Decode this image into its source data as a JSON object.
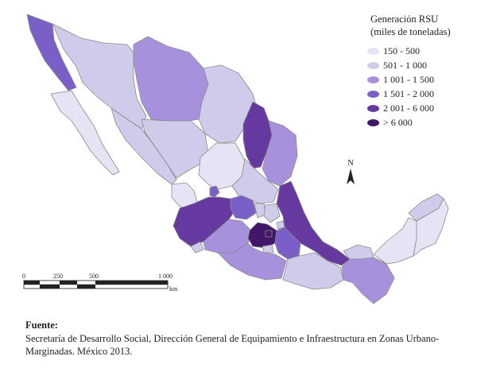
{
  "legend": {
    "title_line1": "Generación RSU",
    "title_line2": "(miles de toneladas)",
    "classes": [
      {
        "label": "150 - 500",
        "color": "#e6e3f4"
      },
      {
        "label": "501 - 1 000",
        "color": "#cfcbeb"
      },
      {
        "label": "1 001 - 1 500",
        "color": "#a791dc"
      },
      {
        "label": "1 501 - 2 000",
        "color": "#7b5fc9"
      },
      {
        "label": "2 001 - 6 000",
        "color": "#65399f"
      },
      {
        "label": "> 6 000",
        "color": "#421768"
      }
    ]
  },
  "north_arrow": {
    "label": "N"
  },
  "scale_bar": {
    "ticks": [
      "0",
      "250",
      "500",
      "1 000"
    ],
    "unit": "km"
  },
  "source": {
    "title": "Fuente:",
    "text": "Secretaría de Desarrollo Social, Dirección General de Equipamiento e Infraestructura en Zonas Urbano-Marginadas. México 2013."
  }
}
